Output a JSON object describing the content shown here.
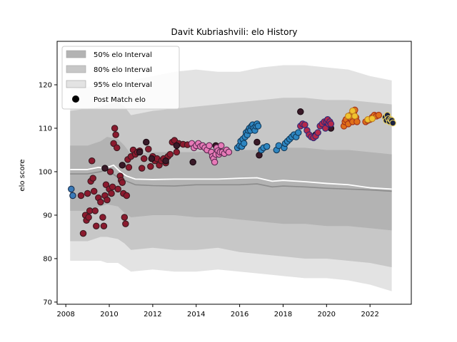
{
  "chart_data": {
    "type": "scatter",
    "title": "Davit Kubriashvili: elo History",
    "xlabel": "",
    "ylabel": "elo score",
    "xlim": [
      2007.6,
      2023.9
    ],
    "ylim": [
      69.5,
      130
    ],
    "x_ticks": [
      2008,
      2010,
      2012,
      2014,
      2016,
      2018,
      2020,
      2022
    ],
    "y_ticks": [
      70,
      80,
      90,
      100,
      110,
      120
    ],
    "legend_position": "upper-left",
    "legend": [
      {
        "label": "50% elo Interval",
        "kind": "patch",
        "color": "#b3b3b3"
      },
      {
        "label": "80% elo Interval",
        "kind": "patch",
        "color": "#c7c7c7"
      },
      {
        "label": "95% elo Interval",
        "kind": "patch",
        "color": "#e3e3e3"
      },
      {
        "label": "Post Match elo",
        "kind": "marker",
        "color": "#000000"
      }
    ],
    "bands": {
      "x": [
        2008.2,
        2009.0,
        2009.6,
        2009.9,
        2010.4,
        2010.7,
        2011.0,
        2012.0,
        2013.0,
        2014.0,
        2015.0,
        2016.0,
        2017.0,
        2018.0,
        2019.0,
        2020.0,
        2021.0,
        2022.0,
        2023.0
      ],
      "p95_low": [
        79.5,
        79.5,
        79.5,
        79.0,
        79.0,
        78.0,
        77.0,
        77.5,
        77.0,
        77.0,
        77.5,
        77.0,
        76.5,
        76.0,
        75.5,
        75.5,
        75.0,
        74.0,
        72.5
      ],
      "p95_high": [
        119.0,
        119.5,
        120.0,
        119.5,
        120.0,
        120.5,
        121.0,
        122.0,
        123.0,
        123.5,
        123.0,
        123.0,
        124.0,
        124.5,
        124.5,
        124.0,
        123.5,
        122.0,
        121.0
      ],
      "p80_low": [
        84.0,
        84.0,
        85.0,
        85.0,
        84.5,
        83.5,
        82.0,
        82.5,
        82.0,
        82.0,
        82.5,
        81.5,
        81.0,
        80.5,
        80.0,
        80.0,
        79.5,
        79.0,
        78.0
      ],
      "p80_high": [
        114.0,
        114.5,
        115.0,
        115.5,
        116.0,
        115.0,
        113.0,
        114.0,
        114.5,
        115.0,
        115.5,
        116.0,
        116.5,
        117.0,
        117.0,
        116.5,
        116.5,
        116.0,
        115.5
      ],
      "p50_low": [
        91.0,
        91.0,
        92.0,
        92.5,
        92.0,
        90.5,
        89.5,
        90.0,
        90.0,
        89.5,
        89.5,
        89.0,
        88.5,
        88.0,
        88.0,
        87.5,
        87.5,
        87.0,
        86.5
      ],
      "p50_high": [
        106.0,
        106.0,
        107.0,
        108.0,
        107.5,
        106.0,
        104.0,
        104.5,
        104.5,
        104.5,
        105.0,
        105.0,
        105.0,
        105.5,
        105.5,
        105.0,
        105.0,
        104.5,
        104.0
      ]
    },
    "median_line": {
      "x": [
        2008.2,
        2009.0,
        2009.6,
        2009.9,
        2010.3,
        2010.7,
        2011.2,
        2012.0,
        2013.0,
        2014.0,
        2015.0,
        2016.0,
        2016.8,
        2017.5,
        2018.0,
        2019.0,
        2020.0,
        2021.0,
        2022.0,
        2023.0
      ],
      "y": [
        99.5,
        99.5,
        100.0,
        100.5,
        99.0,
        98.0,
        97.0,
        96.8,
        96.7,
        97.0,
        97.0,
        97.0,
        97.2,
        96.5,
        96.7,
        96.5,
        96.2,
        96.0,
        95.8,
        95.5
      ],
      "color": "#8c8c8c"
    },
    "mean_line": {
      "x": [
        2008.2,
        2009.0,
        2009.5,
        2009.8,
        2010.2,
        2010.5,
        2010.8,
        2011.2,
        2012.0,
        2013.0,
        2014.0,
        2015.0,
        2016.0,
        2016.8,
        2017.5,
        2018.0,
        2019.0,
        2020.0,
        2021.0,
        2022.0,
        2023.0
      ],
      "y": [
        100.5,
        100.5,
        101.0,
        100.8,
        101.5,
        100.0,
        99.0,
        98.3,
        98.2,
        98.3,
        98.3,
        98.3,
        98.5,
        98.6,
        97.8,
        98.0,
        97.7,
        97.3,
        97.0,
        96.3,
        96.0
      ],
      "color": "#ffffff"
    },
    "series": [
      {
        "color": "#3a7ab8",
        "edge": "#1a2f4d",
        "x": [
          2008.25,
          2008.32
        ],
        "y": [
          96.0,
          94.5
        ]
      },
      {
        "color": "#8b1a2e",
        "edge": "#3a1a20",
        "x": [
          2008.7,
          2008.8,
          2008.9,
          2008.95,
          2009.0,
          2009.05,
          2009.1,
          2009.15,
          2009.2,
          2009.25,
          2009.3,
          2009.35,
          2009.4,
          2009.5,
          2009.6,
          2009.7,
          2009.75,
          2009.8,
          2009.85,
          2009.9,
          2010.0,
          2010.05,
          2010.1,
          2010.15,
          2010.2,
          2010.25,
          2010.3,
          2010.35,
          2010.4,
          2010.5,
          2010.55,
          2010.6,
          2010.65,
          2010.7,
          2010.75,
          2010.8,
          2010.85,
          2010.9,
          2011.0,
          2011.1,
          2011.2,
          2011.3,
          2011.4,
          2011.5,
          2011.6,
          2011.8,
          2011.9,
          2012.0,
          2012.1,
          2012.2,
          2012.3,
          2012.4,
          2012.5,
          2012.6,
          2012.7,
          2012.8,
          2012.9,
          2013.0,
          2013.1,
          2013.2,
          2013.4,
          2013.6
        ],
        "y": [
          94.5,
          85.8,
          90.0,
          88.8,
          95.0,
          89.5,
          91.0,
          97.8,
          102.5,
          98.5,
          95.5,
          91.0,
          87.5,
          94.0,
          93.0,
          89.5,
          87.5,
          94.5,
          97.0,
          93.5,
          96.0,
          100.0,
          95.0,
          96.5,
          106.5,
          110.0,
          108.5,
          105.5,
          96.0,
          99.0,
          98.0,
          97.5,
          95.0,
          89.5,
          88.0,
          94.5,
          102.8,
          101.0,
          103.5,
          105.0,
          104.0,
          104.5,
          104.8,
          100.8,
          103.0,
          105.2,
          101.2,
          103.5,
          102.5,
          103.0,
          101.5,
          102.5,
          103.0,
          102.0,
          103.5,
          104.0,
          106.8,
          107.2,
          104.5,
          106.5,
          106.3,
          106.2
        ]
      },
      {
        "color": "#3a1a28",
        "edge": "#1a0a12",
        "x": [
          2009.8,
          2010.6,
          2011.4,
          2011.7,
          2011.95,
          2012.6,
          2013.1,
          2013.85,
          2014.9,
          2016.8,
          2016.9,
          2018.8,
          2019.5,
          2020.2
        ],
        "y": [
          100.8,
          101.5,
          104.5,
          106.8,
          103.0,
          102.5,
          106.0,
          102.2,
          106.0,
          106.8,
          103.8,
          113.8,
          108.5,
          110.0
        ]
      },
      {
        "color": "#e77ab8",
        "edge": "#5a2a50",
        "x": [
          2013.8,
          2013.9,
          2014.0,
          2014.1,
          2014.2,
          2014.3,
          2014.4,
          2014.5,
          2014.6,
          2014.7,
          2014.75,
          2014.8,
          2014.85,
          2014.9,
          2014.95,
          2015.0,
          2015.05,
          2015.1,
          2015.15,
          2015.2,
          2015.3,
          2015.4,
          2015.5
        ],
        "y": [
          106.5,
          105.5,
          106.0,
          106.5,
          105.8,
          106.0,
          105.5,
          105.0,
          106.0,
          104.5,
          103.5,
          103.0,
          102.2,
          104.0,
          105.5,
          104.8,
          104.0,
          104.5,
          106.0,
          104.5,
          104.2,
          105.0,
          104.5
        ]
      },
      {
        "color": "#2e86c1",
        "edge": "#123a5a",
        "x": [
          2015.9,
          2016.0,
          2016.05,
          2016.1,
          2016.15,
          2016.2,
          2016.25,
          2016.3,
          2016.35,
          2016.4,
          2016.45,
          2016.5,
          2016.55,
          2016.6,
          2016.65,
          2016.7,
          2016.75,
          2016.8,
          2016.85,
          2017.0,
          2017.1,
          2017.25,
          2017.7,
          2017.8,
          2018.05,
          2018.1,
          2018.2,
          2018.3,
          2018.4,
          2018.5,
          2018.6,
          2018.7
        ],
        "y": [
          105.5,
          106.0,
          107.0,
          105.8,
          107.5,
          106.5,
          108.0,
          109.0,
          108.5,
          109.5,
          110.0,
          109.5,
          110.5,
          110.8,
          110.0,
          109.5,
          110.5,
          111.0,
          110.5,
          105.0,
          105.5,
          105.8,
          105.0,
          106.0,
          105.5,
          106.5,
          107.0,
          107.5,
          108.0,
          108.5,
          108.0,
          109.0
        ]
      },
      {
        "color": "#b5294a",
        "edge": "#2a2a7a",
        "x": [
          2018.8,
          2018.9,
          2019.0,
          2019.1,
          2019.2,
          2019.3,
          2019.4,
          2019.5,
          2019.6,
          2019.7,
          2019.8,
          2019.9,
          2019.95,
          2020.0,
          2020.05,
          2020.1,
          2020.15,
          2020.2
        ],
        "y": [
          110.5,
          111.0,
          110.8,
          109.5,
          108.5,
          108.0,
          107.8,
          108.2,
          109.0,
          110.5,
          111.0,
          111.5,
          110.0,
          111.5,
          112.0,
          111.0,
          111.5,
          111.0
        ]
      },
      {
        "color": "#e0701a",
        "edge": "#a0301a",
        "x": [
          2020.8,
          2020.85,
          2020.9,
          2021.0,
          2021.05,
          2021.1,
          2021.15,
          2021.2,
          2021.25,
          2021.3,
          2021.35,
          2021.4,
          2021.8,
          2021.9,
          2022.0,
          2022.1,
          2022.2,
          2022.3,
          2022.4
        ],
        "y": [
          110.5,
          111.5,
          112.0,
          111.0,
          112.5,
          113.0,
          112.0,
          111.5,
          113.5,
          114.2,
          112.5,
          111.5,
          111.5,
          111.8,
          112.0,
          112.5,
          113.0,
          112.8,
          113.0
        ]
      },
      {
        "color": "#f0c330",
        "edge": "#c08020",
        "x": [
          2021.0,
          2021.2,
          2021.3,
          2021.9,
          2022.1
        ],
        "y": [
          112.8,
          114.0,
          112.8,
          112.0,
          112.2
        ]
      },
      {
        "color": "#1c2340",
        "edge": "#e8d060",
        "x": [
          2022.7,
          2022.75,
          2022.8,
          2022.85,
          2022.9,
          2022.95,
          2023.0,
          2023.05
        ],
        "y": [
          112.5,
          111.8,
          113.0,
          112.2,
          111.5,
          112.0,
          111.8,
          111.2
        ]
      }
    ]
  }
}
